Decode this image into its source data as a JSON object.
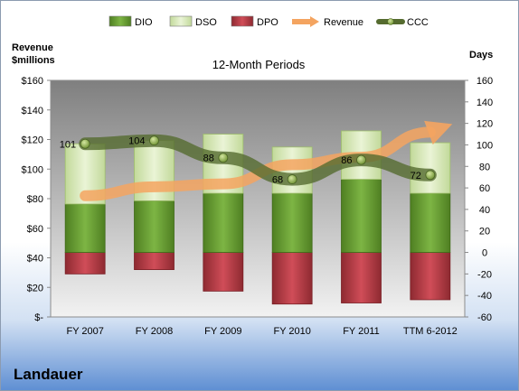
{
  "chart_data": {
    "type": "bar",
    "title": "12-Month Periods",
    "company": "Landauer",
    "left_axis": {
      "label_lines": [
        "Revenue",
        "$millions"
      ],
      "range": [
        0,
        160
      ],
      "step": 20,
      "tick_labels": [
        "$-",
        "$20",
        "$40",
        "$60",
        "$80",
        "$100",
        "$120",
        "$140",
        "$160"
      ]
    },
    "right_axis": {
      "label": "Days",
      "range": [
        -60,
        160
      ],
      "step": 20,
      "tick_labels": [
        "-60",
        "-40",
        "-20",
        "0",
        "20",
        "40",
        "60",
        "80",
        "100",
        "120",
        "140",
        "160"
      ]
    },
    "categories": [
      "FY 2007",
      "FY 2008",
      "FY 2009",
      "FY 2010",
      "FY 2011",
      "TTM 6-2012"
    ],
    "series": [
      {
        "name": "DIO",
        "type": "stacked-bar",
        "axis": "right",
        "values": [
          45,
          48,
          55,
          55,
          68,
          55
        ],
        "color": "#6a9e31"
      },
      {
        "name": "DSO",
        "type": "stacked-bar",
        "axis": "right",
        "values": [
          56,
          56,
          55,
          43,
          45,
          47
        ],
        "color": "#d6e8b0"
      },
      {
        "name": "DPO",
        "type": "negative-bar",
        "axis": "right",
        "values": [
          -20,
          -16,
          -36,
          -48,
          -47,
          -44
        ],
        "color": "#c0424c"
      },
      {
        "name": "Revenue",
        "type": "line-arrow",
        "axis": "left",
        "values": [
          82,
          88,
          90,
          103,
          108,
          125
        ],
        "color": "#f0a060"
      },
      {
        "name": "CCC",
        "type": "line",
        "axis": "right",
        "values": [
          101,
          104,
          88,
          68,
          86,
          72
        ],
        "color": "#5b7a3a"
      }
    ],
    "ccc_labels": [
      "101",
      "104",
      "88",
      "68",
      "86",
      "72"
    ],
    "legend": {
      "position": "top",
      "items": [
        "DIO",
        "DSO",
        "DPO",
        "Revenue",
        "CCC"
      ]
    },
    "grid": false
  }
}
